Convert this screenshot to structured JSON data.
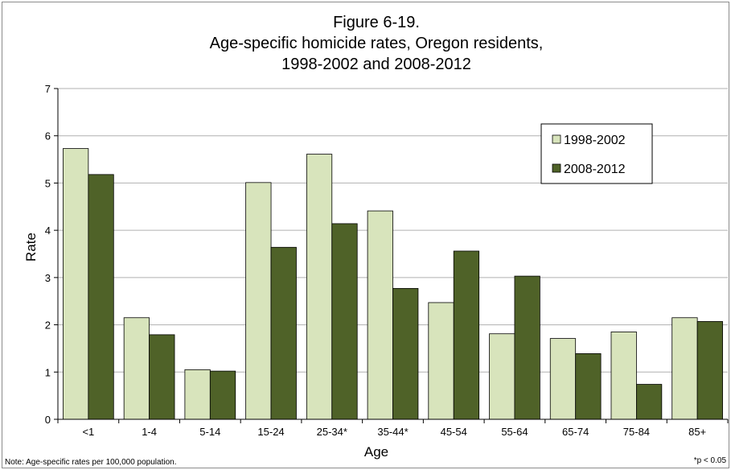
{
  "chart_data": {
    "type": "bar",
    "title_lines": [
      "Figure 6-19.",
      "Age-specific homicide rates, Oregon residents,",
      "1998-2002 and 2008-2012"
    ],
    "xlabel": "Age",
    "ylabel": "Rate",
    "ylim": [
      0,
      7
    ],
    "yticks": [
      "0",
      "1",
      "2",
      "3",
      "4",
      "5",
      "6",
      "7"
    ],
    "grid": true,
    "legend_position": "top-right",
    "categories": [
      "<1",
      "1-4",
      "5-14",
      "15-24",
      "25-34*",
      "35-44*",
      "45-54",
      "55-64",
      "65-74",
      "75-84",
      "85+"
    ],
    "series": [
      {
        "name": "1998-2002",
        "color": "#d8e4bc",
        "values": [
          5.73,
          2.15,
          1.05,
          5.01,
          5.61,
          4.41,
          2.47,
          1.81,
          1.71,
          1.85,
          2.15
        ]
      },
      {
        "name": "2008-2012",
        "color": "#4f6228",
        "values": [
          5.18,
          1.79,
          1.02,
          3.64,
          4.14,
          2.77,
          3.56,
          3.03,
          1.39,
          0.74,
          2.07
        ]
      }
    ]
  },
  "notes": {
    "left": "Note: Age-specific rates per 100,000 population.",
    "right": "*p < 0.05"
  }
}
